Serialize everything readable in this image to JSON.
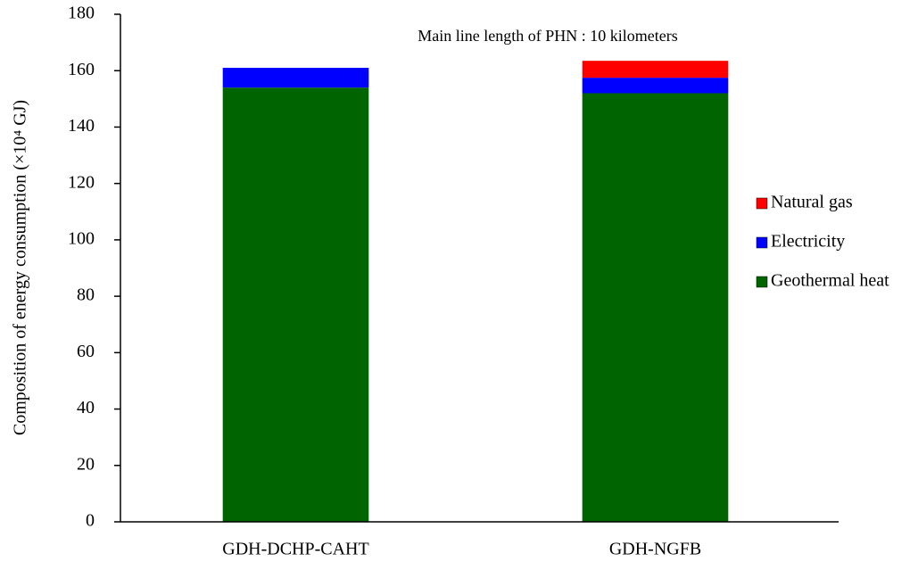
{
  "chart_data": {
    "type": "stacked_bar",
    "ylabel": "Composition of energy consumption (×10⁴ GJ)",
    "annotation": "Main line length of PHN : 10 kilometers",
    "categories": [
      "GDH-DCHP-CAHT",
      "GDH-NGFB"
    ],
    "series": [
      {
        "name": "Geothermal heat",
        "color": "#006400",
        "values": [
          154,
          152
        ]
      },
      {
        "name": "Electricity",
        "color": "#0000ff",
        "values": [
          7,
          5.5
        ]
      },
      {
        "name": "Natural gas",
        "color": "#ff0000",
        "values": [
          0,
          6
        ]
      }
    ],
    "ylim": [
      0,
      180
    ],
    "yticks": [
      0,
      20,
      40,
      60,
      80,
      100,
      120,
      140,
      160,
      180
    ],
    "legend": "right"
  }
}
